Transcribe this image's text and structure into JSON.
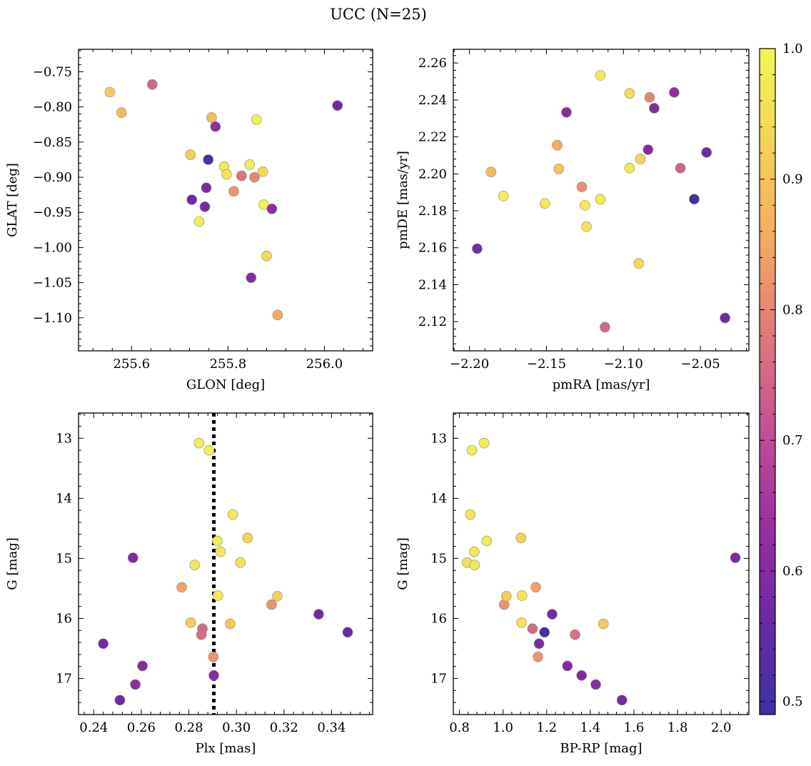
{
  "title": "UCC (N=25)",
  "colorbar": {
    "min": 0.49,
    "max": 1.0,
    "ticks": [
      0.5,
      0.6,
      0.7,
      0.8,
      0.9,
      1.0
    ],
    "tick_labels": [
      "0.5",
      "0.6",
      "0.7",
      "0.8",
      "0.9",
      "1.0"
    ],
    "colormap": "plasma",
    "stops": [
      "#3b32a0",
      "#6a2aa5",
      "#9b2ea0",
      "#c45096",
      "#e07a7a",
      "#f5ab62",
      "#f5d255",
      "#f0f754"
    ]
  },
  "chart_data": [
    {
      "type": "scatter",
      "xlabel": "GLON [deg]",
      "ylabel": "GLAT [deg]",
      "xlim": [
        255.49,
        256.1
      ],
      "ylim": [
        -1.147,
        -0.718
      ],
      "xticks": [
        255.6,
        255.8,
        256.0
      ],
      "xtick_labels": [
        "255.6",
        "255.8",
        "256.0"
      ],
      "yticks": [
        -0.75,
        -0.8,
        -0.85,
        -0.9,
        -0.95,
        -1.0,
        -1.05,
        -1.1
      ],
      "ytick_labels": [
        "−0.75",
        "−0.80",
        "−0.85",
        "−0.90",
        "−0.95",
        "−1.00",
        "−1.05",
        "−1.10"
      ],
      "grid": false,
      "points": [
        {
          "x": 255.555,
          "y": -0.779,
          "c": 0.91
        },
        {
          "x": 255.579,
          "y": -0.808,
          "c": 0.88
        },
        {
          "x": 255.643,
          "y": -0.768,
          "c": 0.75
        },
        {
          "x": 255.722,
          "y": -0.868,
          "c": 0.92
        },
        {
          "x": 255.725,
          "y": -0.932,
          "c": 0.57
        },
        {
          "x": 255.74,
          "y": -0.963,
          "c": 0.98
        },
        {
          "x": 255.752,
          "y": -0.942,
          "c": 0.58
        },
        {
          "x": 255.755,
          "y": -0.915,
          "c": 0.59
        },
        {
          "x": 255.759,
          "y": -0.875,
          "c": 0.5
        },
        {
          "x": 255.766,
          "y": -0.815,
          "c": 0.89
        },
        {
          "x": 255.774,
          "y": -0.828,
          "c": 0.62
        },
        {
          "x": 255.792,
          "y": -0.885,
          "c": 0.97
        },
        {
          "x": 255.797,
          "y": -0.896,
          "c": 0.96
        },
        {
          "x": 255.812,
          "y": -0.92,
          "c": 0.82
        },
        {
          "x": 255.828,
          "y": -0.898,
          "c": 0.77
        },
        {
          "x": 255.845,
          "y": -0.882,
          "c": 0.98
        },
        {
          "x": 255.848,
          "y": -1.043,
          "c": 0.6
        },
        {
          "x": 255.855,
          "y": -0.9,
          "c": 0.8
        },
        {
          "x": 255.859,
          "y": -0.818,
          "c": 0.99
        },
        {
          "x": 255.872,
          "y": -0.892,
          "c": 0.94
        },
        {
          "x": 255.874,
          "y": -0.939,
          "c": 0.99
        },
        {
          "x": 255.88,
          "y": -1.012,
          "c": 0.94
        },
        {
          "x": 255.891,
          "y": -0.945,
          "c": 0.61
        },
        {
          "x": 255.903,
          "y": -1.096,
          "c": 0.85
        },
        {
          "x": 256.027,
          "y": -0.798,
          "c": 0.57
        }
      ]
    },
    {
      "type": "scatter",
      "xlabel": "pmRA [mas/yr]",
      "ylabel": "pmDE [mas/yr]",
      "xlim": [
        -2.2105,
        -2.0185
      ],
      "ylim": [
        2.1042,
        2.2674
      ],
      "xticks": [
        -2.2,
        -2.15,
        -2.1,
        -2.05
      ],
      "xtick_labels": [
        "−2.20",
        "−2.15",
        "−2.10",
        "−2.05"
      ],
      "yticks": [
        2.12,
        2.14,
        2.16,
        2.18,
        2.2,
        2.22,
        2.24,
        2.26
      ],
      "ytick_labels": [
        "2.12",
        "2.14",
        "2.16",
        "2.18",
        "2.20",
        "2.22",
        "2.24",
        "2.26"
      ],
      "grid": false,
      "points": [
        {
          "x": -2.195,
          "y": 2.1595,
          "c": 0.58
        },
        {
          "x": -2.186,
          "y": 2.201,
          "c": 0.88
        },
        {
          "x": -2.178,
          "y": 2.188,
          "c": 0.98
        },
        {
          "x": -2.151,
          "y": 2.184,
          "c": 0.97
        },
        {
          "x": -2.143,
          "y": 2.2155,
          "c": 0.85
        },
        {
          "x": -2.142,
          "y": 2.2027,
          "c": 0.9
        },
        {
          "x": -2.137,
          "y": 2.2333,
          "c": 0.61
        },
        {
          "x": -2.127,
          "y": 2.1929,
          "c": 0.81
        },
        {
          "x": -2.125,
          "y": 2.183,
          "c": 0.97
        },
        {
          "x": -2.124,
          "y": 2.1714,
          "c": 0.96
        },
        {
          "x": -2.115,
          "y": 2.2533,
          "c": 0.97
        },
        {
          "x": -2.115,
          "y": 2.1862,
          "c": 0.98
        },
        {
          "x": -2.112,
          "y": 2.117,
          "c": 0.75
        },
        {
          "x": -2.096,
          "y": 2.2435,
          "c": 0.95
        },
        {
          "x": -2.096,
          "y": 2.2031,
          "c": 0.97
        },
        {
          "x": -2.09,
          "y": 2.1515,
          "c": 0.94
        },
        {
          "x": -2.089,
          "y": 2.208,
          "c": 0.93
        },
        {
          "x": -2.084,
          "y": 2.2131,
          "c": 0.6
        },
        {
          "x": -2.083,
          "y": 2.2414,
          "c": 0.8
        },
        {
          "x": -2.08,
          "y": 2.2355,
          "c": 0.6
        },
        {
          "x": -2.067,
          "y": 2.2441,
          "c": 0.63
        },
        {
          "x": -2.063,
          "y": 2.2031,
          "c": 0.74
        },
        {
          "x": -2.054,
          "y": 2.1863,
          "c": 0.51
        },
        {
          "x": -2.046,
          "y": 2.2116,
          "c": 0.57
        },
        {
          "x": -2.034,
          "y": 2.122,
          "c": 0.57
        }
      ]
    },
    {
      "type": "scatter",
      "xlabel": "Plx [mas]",
      "ylabel": "G [mag]",
      "xlim": [
        0.2336,
        0.3573
      ],
      "ylim": [
        17.6,
        12.58
      ],
      "xticks": [
        0.24,
        0.26,
        0.28,
        0.3,
        0.32,
        0.34
      ],
      "xtick_labels": [
        "0.24",
        "0.26",
        "0.28",
        "0.30",
        "0.32",
        "0.34"
      ],
      "yticks": [
        13,
        14,
        15,
        16,
        17
      ],
      "ytick_labels": [
        "13",
        "14",
        "15",
        "16",
        "17"
      ],
      "grid": false,
      "vline": {
        "x": 0.2905,
        "style": "dotted"
      },
      "points": [
        {
          "x": 0.244,
          "y": 16.42,
          "c": 0.58
        },
        {
          "x": 0.251,
          "y": 17.36,
          "c": 0.57
        },
        {
          "x": 0.2565,
          "y": 14.99,
          "c": 0.59
        },
        {
          "x": 0.2575,
          "y": 17.1,
          "c": 0.62
        },
        {
          "x": 0.2605,
          "y": 16.79,
          "c": 0.6
        },
        {
          "x": 0.277,
          "y": 15.48,
          "c": 0.84
        },
        {
          "x": 0.2808,
          "y": 16.07,
          "c": 0.92
        },
        {
          "x": 0.2825,
          "y": 15.11,
          "c": 0.97
        },
        {
          "x": 0.2843,
          "y": 13.08,
          "c": 0.98
        },
        {
          "x": 0.2853,
          "y": 16.27,
          "c": 0.76
        },
        {
          "x": 0.2857,
          "y": 16.17,
          "c": 0.75
        },
        {
          "x": 0.2885,
          "y": 13.2,
          "c": 0.98
        },
        {
          "x": 0.2903,
          "y": 16.64,
          "c": 0.82
        },
        {
          "x": 0.2905,
          "y": 16.95,
          "c": 0.6
        },
        {
          "x": 0.292,
          "y": 14.71,
          "c": 0.98
        },
        {
          "x": 0.2922,
          "y": 15.62,
          "c": 0.97
        },
        {
          "x": 0.2933,
          "y": 14.89,
          "c": 0.97
        },
        {
          "x": 0.2974,
          "y": 16.09,
          "c": 0.91
        },
        {
          "x": 0.2985,
          "y": 14.27,
          "c": 0.97
        },
        {
          "x": 0.3017,
          "y": 15.07,
          "c": 0.96
        },
        {
          "x": 0.3047,
          "y": 14.66,
          "c": 0.93
        },
        {
          "x": 0.3148,
          "y": 15.77,
          "c": 0.82
        },
        {
          "x": 0.3172,
          "y": 15.63,
          "c": 0.92
        },
        {
          "x": 0.3346,
          "y": 15.93,
          "c": 0.57
        },
        {
          "x": 0.3468,
          "y": 16.23,
          "c": 0.56
        }
      ]
    },
    {
      "type": "scatter",
      "xlabel": "BP-RP [mag]",
      "ylabel": "G [mag]",
      "xlim": [
        0.772,
        2.127
      ],
      "ylim": [
        17.6,
        12.58
      ],
      "xticks": [
        0.8,
        1.0,
        1.2,
        1.4,
        1.6,
        1.8,
        2.0
      ],
      "xtick_labels": [
        "0.8",
        "1.0",
        "1.2",
        "1.4",
        "1.6",
        "1.8",
        "2.0"
      ],
      "yticks": [
        13,
        14,
        15,
        16,
        17
      ],
      "ytick_labels": [
        "13",
        "14",
        "15",
        "16",
        "17"
      ],
      "grid": false,
      "points": [
        {
          "x": 0.835,
          "y": 15.07,
          "c": 0.95
        },
        {
          "x": 0.85,
          "y": 14.27,
          "c": 0.97
        },
        {
          "x": 0.857,
          "y": 13.2,
          "c": 0.98
        },
        {
          "x": 0.868,
          "y": 14.89,
          "c": 0.97
        },
        {
          "x": 0.87,
          "y": 15.11,
          "c": 0.97
        },
        {
          "x": 0.913,
          "y": 13.08,
          "c": 0.98
        },
        {
          "x": 0.925,
          "y": 14.71,
          "c": 0.98
        },
        {
          "x": 1.005,
          "y": 15.77,
          "c": 0.82
        },
        {
          "x": 1.015,
          "y": 15.63,
          "c": 0.92
        },
        {
          "x": 1.082,
          "y": 14.66,
          "c": 0.93
        },
        {
          "x": 1.085,
          "y": 16.07,
          "c": 0.96
        },
        {
          "x": 1.087,
          "y": 15.62,
          "c": 0.97
        },
        {
          "x": 1.135,
          "y": 16.17,
          "c": 0.75
        },
        {
          "x": 1.15,
          "y": 15.48,
          "c": 0.84
        },
        {
          "x": 1.16,
          "y": 16.64,
          "c": 0.82
        },
        {
          "x": 1.165,
          "y": 16.42,
          "c": 0.59
        },
        {
          "x": 1.19,
          "y": 16.23,
          "c": 0.51
        },
        {
          "x": 1.225,
          "y": 15.93,
          "c": 0.57
        },
        {
          "x": 1.295,
          "y": 16.79,
          "c": 0.6
        },
        {
          "x": 1.33,
          "y": 16.27,
          "c": 0.76
        },
        {
          "x": 1.36,
          "y": 16.95,
          "c": 0.6
        },
        {
          "x": 1.425,
          "y": 17.1,
          "c": 0.61
        },
        {
          "x": 1.46,
          "y": 16.09,
          "c": 0.91
        },
        {
          "x": 1.545,
          "y": 17.36,
          "c": 0.57
        },
        {
          "x": 2.065,
          "y": 14.99,
          "c": 0.59
        }
      ]
    }
  ]
}
